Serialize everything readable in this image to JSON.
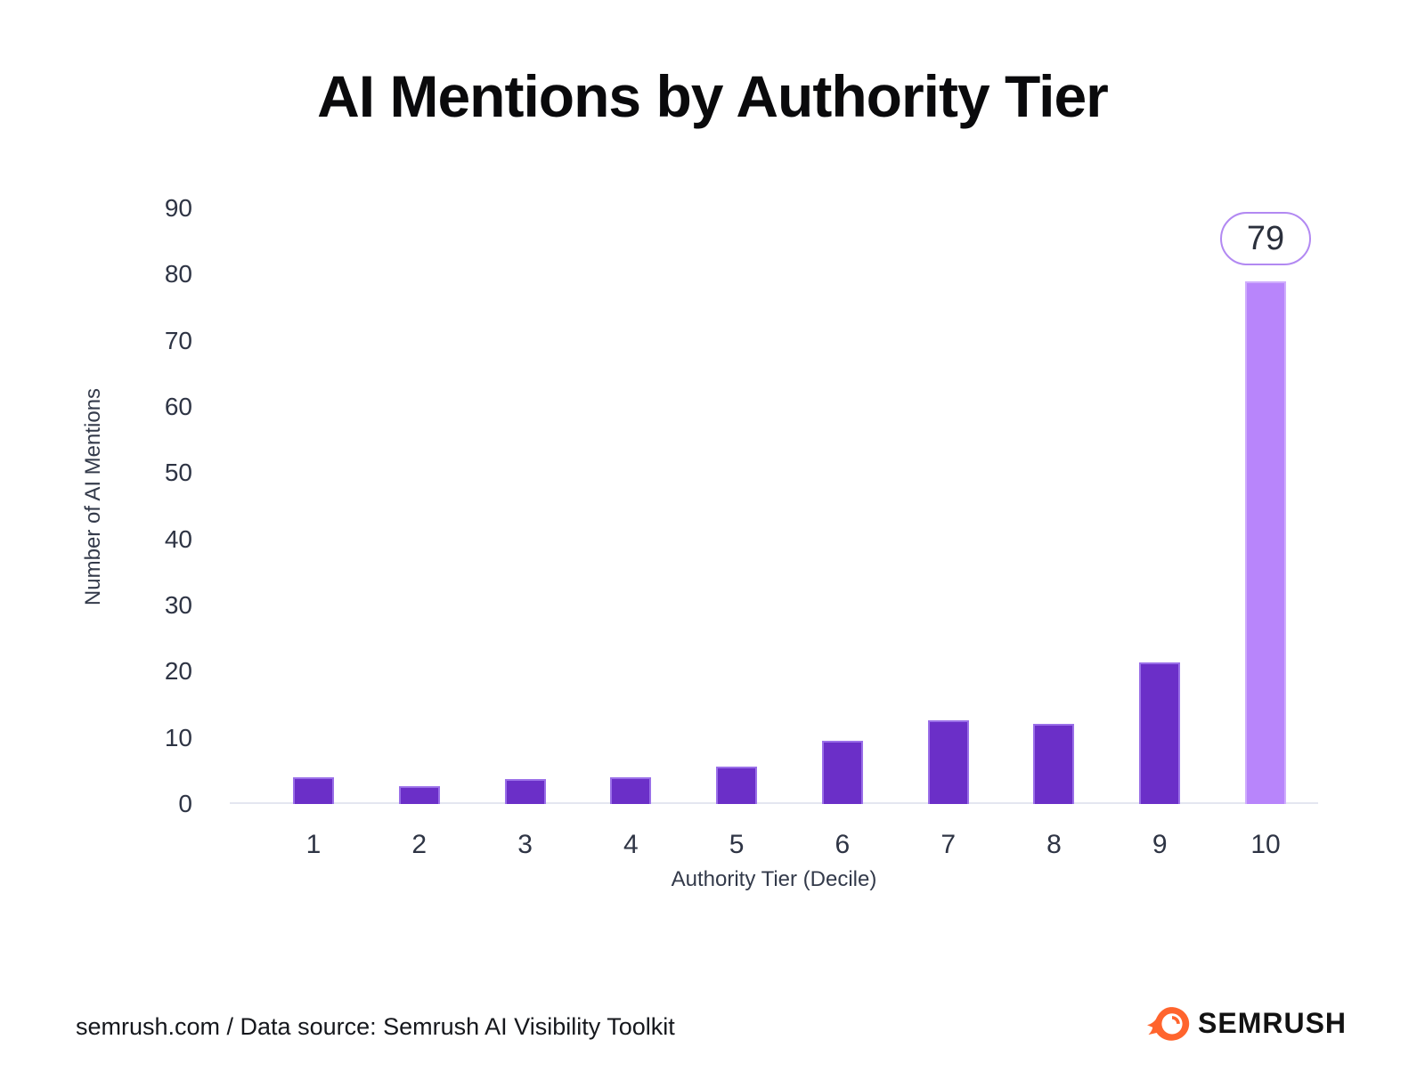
{
  "title": "AI Mentions by Authority Tier",
  "chart_data": {
    "type": "bar",
    "title": "AI Mentions by Authority Tier",
    "categories": [
      "1",
      "2",
      "3",
      "4",
      "5",
      "6",
      "7",
      "8",
      "9",
      "10"
    ],
    "values": [
      4.1,
      2.7,
      3.7,
      4.0,
      5.6,
      9.5,
      12.7,
      12.1,
      21.4,
      79
    ],
    "xlabel": "Authority Tier (Decile)",
    "ylabel": "Number of AI Mentions",
    "ylim": [
      0,
      90
    ],
    "yticks": [
      0,
      10,
      20,
      30,
      40,
      50,
      60,
      70,
      80,
      90
    ],
    "grid": false,
    "legend": "none",
    "bar_color": "#6b2fc8",
    "bar_border_color": "#9a6fe8",
    "highlight_index": 9,
    "highlight_color": "#b885fb",
    "highlight_border_color": "#cfadfd",
    "annotation": {
      "category": "10",
      "label": "79",
      "border_color": "#b289f2"
    }
  },
  "footer": {
    "source_text": "semrush.com / Data source: Semrush AI Visibility Toolkit",
    "brand": "SEMRUSH",
    "brand_color": "#ff642d"
  }
}
